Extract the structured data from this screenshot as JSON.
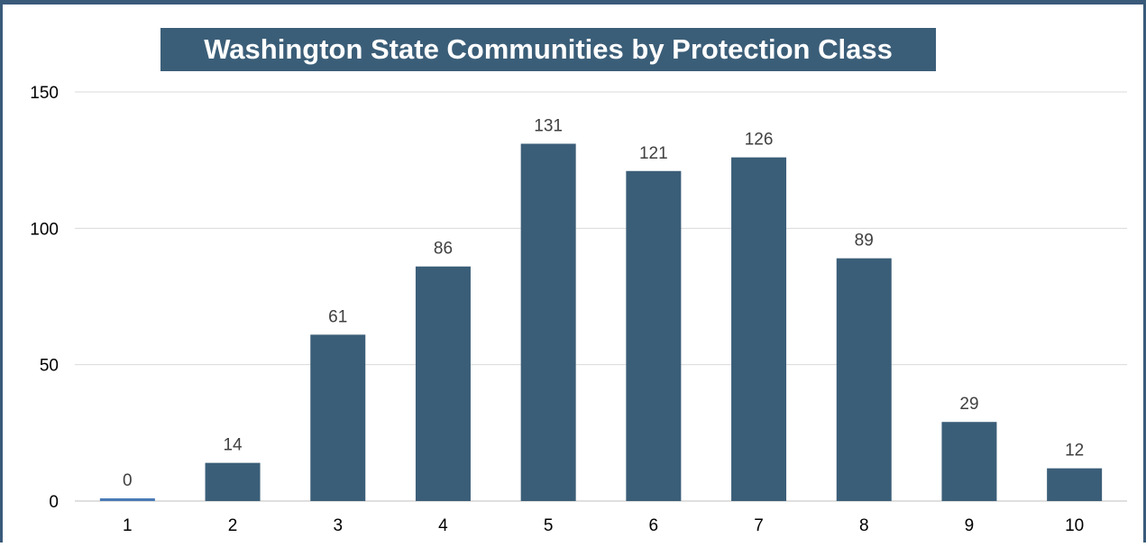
{
  "chart_data": {
    "type": "bar",
    "title": "Washington State Communities by Protection Class",
    "xlabel": "",
    "ylabel": "",
    "categories": [
      "1",
      "2",
      "3",
      "4",
      "5",
      "6",
      "7",
      "8",
      "9",
      "10"
    ],
    "values": [
      0,
      14,
      61,
      86,
      131,
      121,
      126,
      89,
      29,
      12
    ],
    "data_labels": [
      "0",
      "14",
      "61",
      "86",
      "131",
      "121",
      "126",
      "89",
      "29",
      "12"
    ],
    "ylim": [
      0,
      150
    ],
    "yticks": [
      0,
      50,
      100,
      150
    ],
    "grid": true,
    "legend": "none",
    "colors": {
      "bar": "#3b5e78",
      "first_bar": "#4a7ab5",
      "title_background": "#3b5e78",
      "title_text": "#ffffff",
      "frame": "#3a5a7a",
      "gridline": "#d9d9d9"
    }
  }
}
